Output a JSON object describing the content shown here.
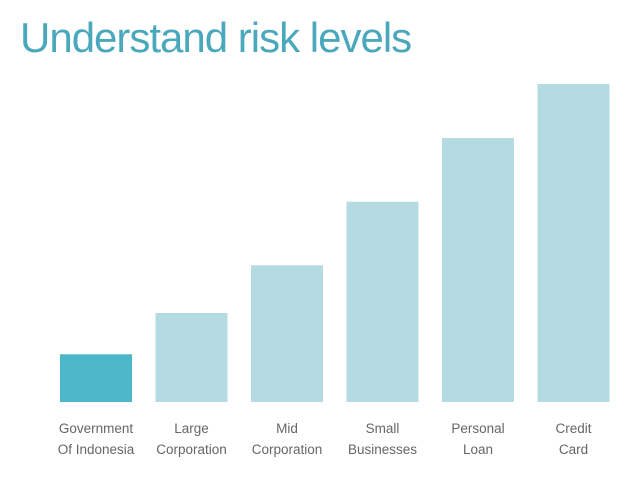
{
  "page": {
    "title": "Understand risk levels"
  },
  "chart_data": {
    "type": "bar",
    "title": "",
    "xlabel": "",
    "ylabel": "",
    "ylim": [
      0,
      100
    ],
    "categories": [
      [
        "Government",
        "Of Indonesia"
      ],
      [
        "Large",
        "Corporation"
      ],
      [
        "Mid",
        "Corporation"
      ],
      [
        "Small",
        "Businesses"
      ],
      [
        "Personal",
        "Loan"
      ],
      [
        "Credit",
        "Card"
      ]
    ],
    "values": [
      15,
      28,
      43,
      63,
      83,
      100
    ],
    "highlight_index": 0,
    "colors": {
      "highlight": "#4db6c8",
      "default": "#b4dbe1"
    },
    "grid": false,
    "legend": "none"
  }
}
